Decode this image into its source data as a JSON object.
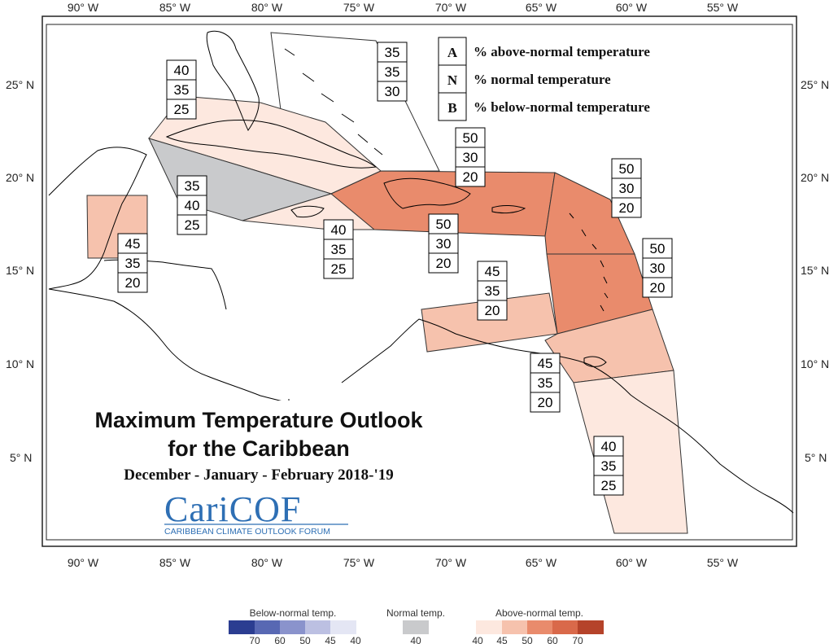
{
  "title": {
    "line1": "Maximum Temperature Outlook",
    "line2": "for the Caribbean",
    "season": "December - January - February 2018-'19"
  },
  "logo": {
    "name": "CariCOF",
    "tagline": "CARIBBEAN CLIMATE OUTLOOK FORUM"
  },
  "legend_key": [
    {
      "letter": "A",
      "text": "% above-normal temperature"
    },
    {
      "letter": "N",
      "text": "% normal temperature"
    },
    {
      "letter": "B",
      "text": "% below-normal temperature"
    }
  ],
  "axes": {
    "lon_ticks": [
      "90° W",
      "85° W",
      "80° W",
      "75° W",
      "70° W",
      "65° W",
      "60° W",
      "55° W"
    ],
    "lat_ticks": [
      "25° N",
      "20° N",
      "15° N",
      "10° N",
      "5° N"
    ]
  },
  "colors": {
    "below_scale": [
      "#2b3d91",
      "#5868b3",
      "#8a93cc",
      "#bcc0e2",
      "#e4e6f4"
    ],
    "normal": "#c9cacc",
    "above_scale": [
      "#fde8df",
      "#f6c2ad",
      "#e98b6c",
      "#d9694a",
      "#b5432a"
    ],
    "map_line": "#000000"
  },
  "regions": [
    {
      "name": "Bahamas",
      "probs": [
        "35",
        "35",
        "30"
      ],
      "fill": "none"
    },
    {
      "name": "Cuba",
      "probs": [
        "40",
        "35",
        "25"
      ],
      "fill": "#fde8df"
    },
    {
      "name": "Cayman & W Jamaica channel",
      "probs": [
        "35",
        "40",
        "25"
      ],
      "fill": "#c9cacc"
    },
    {
      "name": "Jamaica",
      "probs": [
        "40",
        "35",
        "25"
      ],
      "fill": "#fde8df"
    },
    {
      "name": "Belize",
      "probs": [
        "45",
        "35",
        "20"
      ],
      "fill": "#f6c2ad"
    },
    {
      "name": "Hispaniola & Puerto Rico",
      "probs": [
        "50",
        "30",
        "20"
      ],
      "fill": "#e98b6c"
    },
    {
      "name": "Lesser Antilles north",
      "probs": [
        "50",
        "30",
        "20"
      ],
      "fill": "#e98b6c"
    },
    {
      "name": "Lesser Antilles south",
      "probs": [
        "50",
        "30",
        "20"
      ],
      "fill": "#e98b6c"
    },
    {
      "name": "ABC islands",
      "probs": [
        "45",
        "35",
        "20"
      ],
      "fill": "#f6c2ad"
    },
    {
      "name": "Trinidad & Tobago",
      "probs": [
        "45",
        "35",
        "20"
      ],
      "fill": "#f6c2ad"
    },
    {
      "name": "Guianas",
      "probs": [
        "40",
        "35",
        "25"
      ],
      "fill": "#fde8df"
    }
  ],
  "colorbar": {
    "below_title": "Below-normal temp.",
    "below_ticks": [
      "70",
      "60",
      "50",
      "45",
      "40"
    ],
    "normal_title": "Normal temp.",
    "normal_tick": "40",
    "above_title": "Above-normal temp.",
    "above_ticks": [
      "40",
      "45",
      "50",
      "60",
      "70"
    ]
  }
}
